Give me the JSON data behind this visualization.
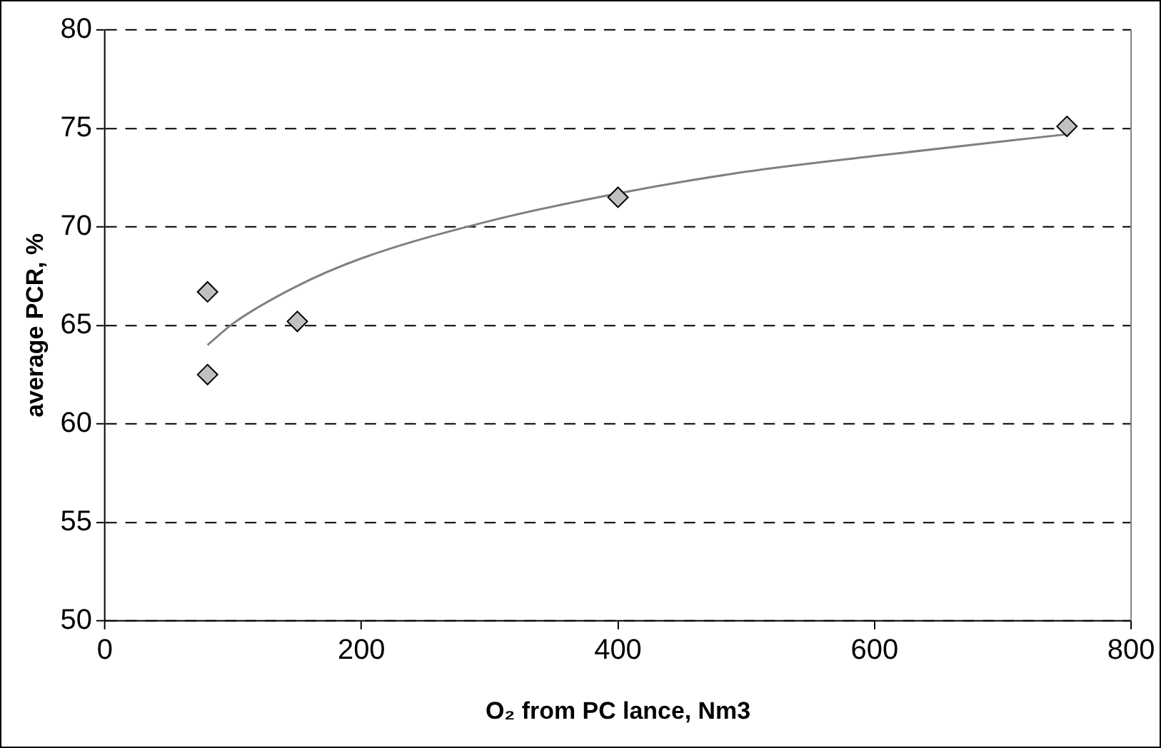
{
  "chart_data": {
    "type": "scatter",
    "xlabel": "O₂ from PC lance, Nm3",
    "ylabel": "average PCR, %",
    "xlim": [
      0,
      800
    ],
    "xticks": [
      0,
      200,
      400,
      600,
      800
    ],
    "ylim": [
      50,
      80
    ],
    "yticks": [
      50,
      55,
      60,
      65,
      70,
      75,
      80
    ],
    "grid": "y",
    "legend": false,
    "marker": "diamond",
    "series": [
      {
        "color": "#c0c0c0",
        "x": [
          80,
          80,
          150,
          400,
          750
        ],
        "values": [
          66.7,
          62.5,
          65.2,
          71.5,
          75.1
        ]
      },
      {
        "type": "line",
        "color": "#808080",
        "marker": "none",
        "x": [
          80,
          100,
          150,
          200,
          300,
          400,
          500,
          600,
          750
        ],
        "values": [
          64.0,
          65.1,
          67.0,
          68.4,
          70.3,
          71.7,
          72.8,
          73.6,
          74.7
        ]
      }
    ]
  }
}
